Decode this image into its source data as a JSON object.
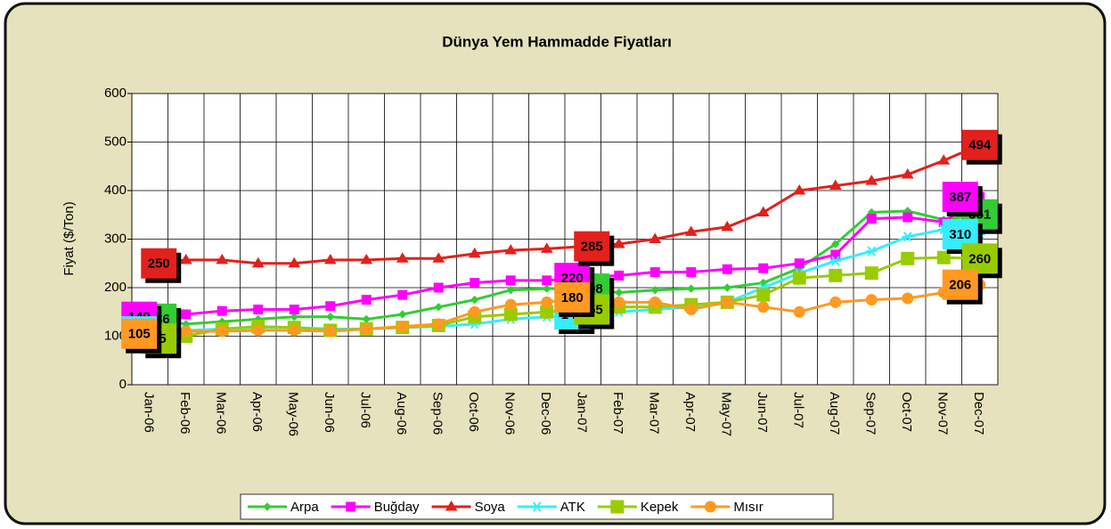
{
  "chart_data": {
    "type": "line",
    "title": "Dünya Yem Hammadde Fiyatları",
    "y_label": "Fiyat ($/Ton)",
    "categories": [
      "Jan-06",
      "Feb-06",
      "Mar-06",
      "Apr-06",
      "May-06",
      "Jun-06",
      "Jul-06",
      "Aug-06",
      "Sep-06",
      "Oct-06",
      "Nov-06",
      "Dec-06",
      "Jan-07",
      "Feb-07",
      "Mar-07",
      "Apr-07",
      "May-07",
      "Jun-07",
      "Jul-07",
      "Aug-07",
      "Sep-07",
      "Oct-07",
      "Nov-07",
      "Dec-07"
    ],
    "ylim": [
      0,
      600
    ],
    "yticks": [
      0,
      100,
      200,
      300,
      400,
      500,
      600
    ],
    "grid": true,
    "legend": "bottom",
    "data_label_points": [
      0,
      12,
      23
    ],
    "series": [
      {
        "name": "Arpa",
        "color": "#33cc33",
        "marker": "diamond",
        "values": [
          136,
          125,
          130,
          135,
          140,
          140,
          135,
          145,
          160,
          175,
          195,
          198,
          198,
          190,
          195,
          198,
          200,
          210,
          240,
          290,
          355,
          358,
          340,
          351
        ]
      },
      {
        "name": "Buğday",
        "color": "#ff00ff",
        "marker": "square",
        "values": [
          140,
          145,
          152,
          155,
          155,
          162,
          175,
          185,
          200,
          210,
          215,
          215,
          220,
          225,
          232,
          232,
          238,
          240,
          250,
          268,
          342,
          345,
          335,
          387
        ]
      },
      {
        "name": "Soya",
        "color": "#e3201c",
        "marker": "triangle",
        "values": [
          250,
          257,
          257,
          250,
          250,
          257,
          257,
          260,
          260,
          270,
          277,
          280,
          285,
          290,
          300,
          315,
          325,
          355,
          400,
          410,
          420,
          433,
          462,
          494
        ]
      },
      {
        "name": "ATK",
        "color": "#33eeff",
        "marker": "star",
        "values": [
          110,
          112,
          115,
          118,
          118,
          115,
          115,
          118,
          120,
          125,
          135,
          140,
          145,
          150,
          155,
          160,
          170,
          200,
          230,
          255,
          275,
          305,
          320,
          310
        ]
      },
      {
        "name": "Kepek",
        "color": "#99cc00",
        "marker": "bigsquare",
        "values": [
          95,
          100,
          115,
          120,
          118,
          112,
          115,
          118,
          122,
          140,
          145,
          150,
          155,
          160,
          160,
          165,
          170,
          185,
          220,
          225,
          230,
          260,
          262,
          260
        ]
      },
      {
        "name": "Mısır",
        "color": "#ff9922",
        "marker": "circle",
        "values": [
          105,
          110,
          110,
          112,
          112,
          110,
          115,
          120,
          125,
          150,
          165,
          170,
          180,
          170,
          170,
          155,
          170,
          160,
          150,
          170,
          175,
          178,
          190,
          206
        ]
      }
    ]
  }
}
